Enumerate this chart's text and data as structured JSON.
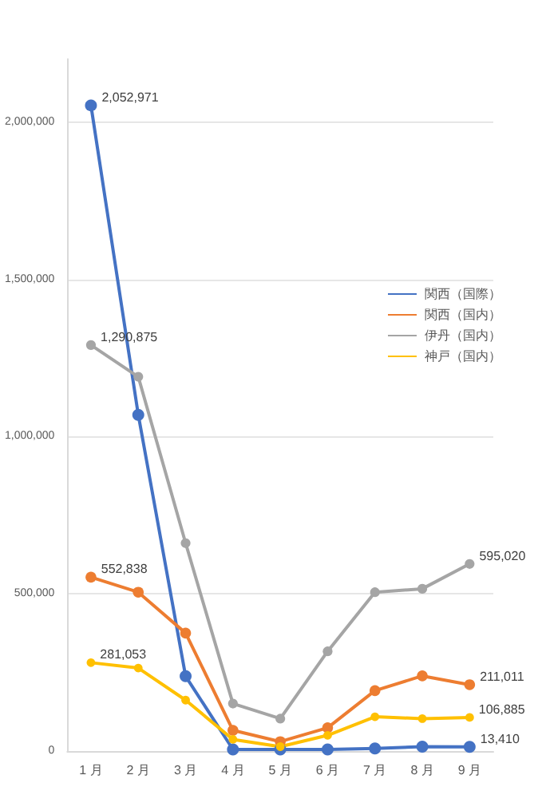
{
  "chart_data": {
    "type": "line",
    "categories": [
      "1 月",
      "2 月",
      "3 月",
      "4 月",
      "5 月",
      "6 月",
      "7 月",
      "8 月",
      "9 月"
    ],
    "series": [
      {
        "name": "関西（国際）",
        "color": "#4472c4",
        "values": [
          2052971,
          1069000,
          238000,
          5000,
          5000,
          5000,
          8000,
          14000,
          13410
        ],
        "value_labels": [
          "2,052,971",
          null,
          null,
          null,
          null,
          null,
          null,
          null,
          "13,410"
        ]
      },
      {
        "name": "関西（国内）",
        "color": "#ed7d31",
        "values": [
          552838,
          505000,
          375000,
          66000,
          30000,
          74000,
          192000,
          239000,
          211011
        ],
        "value_labels": [
          "552,838",
          null,
          null,
          null,
          null,
          null,
          null,
          null,
          "211,011"
        ]
      },
      {
        "name": "伊丹（国内）",
        "color": "#a5a5a5",
        "values": [
          1290875,
          1190000,
          661000,
          151000,
          103000,
          317000,
          505000,
          516000,
          595020
        ],
        "value_labels": [
          "1,290,875",
          null,
          null,
          null,
          null,
          null,
          null,
          null,
          "595,020"
        ]
      },
      {
        "name": "神戸（国内）",
        "color": "#ffc000",
        "values": [
          281053,
          264000,
          162000,
          37000,
          14000,
          50000,
          109000,
          103000,
          106885
        ],
        "value_labels": [
          "281,053",
          null,
          null,
          null,
          null,
          null,
          null,
          null,
          "106,885"
        ]
      }
    ],
    "yticks": [
      {
        "value": 0,
        "label": "0"
      },
      {
        "value": 500000,
        "label": "500,000"
      },
      {
        "value": 1000000,
        "label": "1,000,000"
      },
      {
        "value": 1500000,
        "label": "1,500,000"
      },
      {
        "value": 2000000,
        "label": "2,000,000"
      }
    ],
    "ylim": [
      0,
      2200000
    ],
    "grid": "y",
    "legend": "right",
    "marker": "circle",
    "line_style": "solid"
  }
}
